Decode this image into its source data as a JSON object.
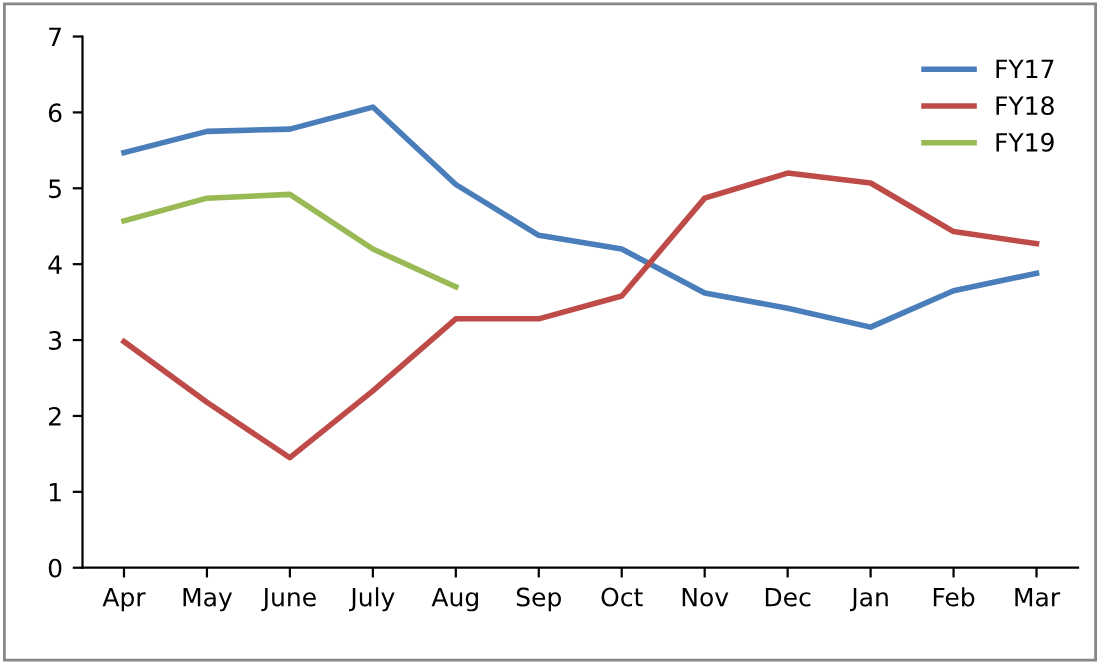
{
  "chart_data": {
    "type": "line",
    "categories": [
      "Apr",
      "May",
      "June",
      "July",
      "Aug",
      "Sep",
      "Oct",
      "Nov",
      "Dec",
      "Jan",
      "Feb",
      "Mar"
    ],
    "series": [
      {
        "name": "FY17",
        "color": "#4a7ebb",
        "values": [
          5.47,
          5.75,
          5.78,
          6.07,
          5.05,
          4.38,
          4.2,
          3.62,
          3.42,
          3.17,
          3.65,
          3.88
        ]
      },
      {
        "name": "FY18",
        "color": "#be4b48",
        "values": [
          2.98,
          2.18,
          1.45,
          2.33,
          3.28,
          3.28,
          3.58,
          4.87,
          5.2,
          5.07,
          4.43,
          4.27
        ]
      },
      {
        "name": "FY19",
        "color": "#98b954",
        "values": [
          4.57,
          4.87,
          4.92,
          4.2,
          3.7,
          null,
          null,
          null,
          null,
          null,
          null,
          null
        ]
      }
    ],
    "ylim": [
      0,
      7
    ],
    "yticks": [
      0,
      1,
      2,
      3,
      4,
      5,
      6,
      7
    ],
    "grid": false,
    "legend": "top right",
    "marker": "none",
    "line_style": "solid"
  }
}
